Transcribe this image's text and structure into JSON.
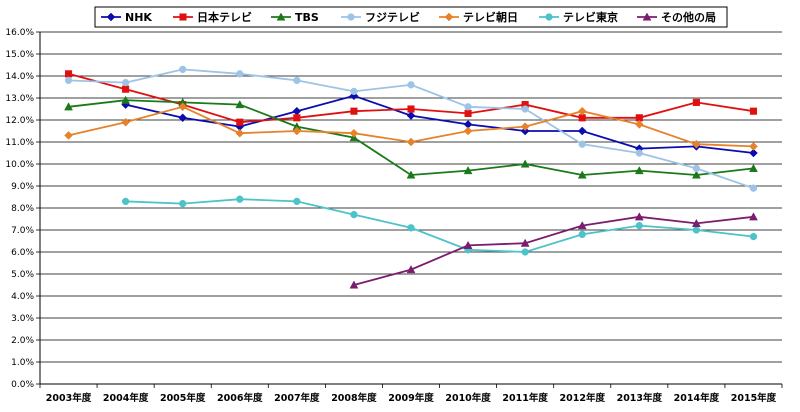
{
  "chart_data": {
    "type": "line",
    "title": "",
    "xlabel": "",
    "ylabel": "",
    "ylim": [
      0,
      16
    ],
    "y_tick_step": 1,
    "y_tick_format": "percent_1dp",
    "grid": true,
    "legend_position": "top",
    "categories": [
      "2003年度",
      "2004年度",
      "2005年度",
      "2006年度",
      "2007年度",
      "2008年度",
      "2009年度",
      "2010年度",
      "2011年度",
      "2012年度",
      "2013年度",
      "2014年度",
      "2015年度"
    ],
    "series": [
      {
        "name": "NHK",
        "color": "#0b0bb0",
        "marker": "diamond",
        "values": [
          null,
          12.7,
          12.1,
          11.7,
          12.4,
          13.1,
          12.2,
          11.8,
          11.5,
          11.5,
          10.7,
          10.8,
          10.5
        ]
      },
      {
        "name": "日本テレビ",
        "color": "#e01010",
        "marker": "square",
        "values": [
          14.1,
          13.4,
          12.7,
          11.9,
          12.1,
          12.4,
          12.5,
          12.3,
          12.7,
          12.1,
          12.1,
          12.8,
          12.4
        ]
      },
      {
        "name": "TBS",
        "color": "#1a7a1a",
        "marker": "triangle",
        "values": [
          12.6,
          12.9,
          12.8,
          12.7,
          11.7,
          11.2,
          9.5,
          9.7,
          10.0,
          9.5,
          9.7,
          9.5,
          9.8
        ]
      },
      {
        "name": "フジテレビ",
        "color": "#9dc3e6",
        "marker": "circle",
        "values": [
          13.8,
          13.7,
          14.3,
          14.1,
          13.8,
          13.3,
          13.6,
          12.6,
          12.5,
          10.9,
          10.5,
          9.8,
          8.9
        ]
      },
      {
        "name": "テレビ朝日",
        "color": "#e6822a",
        "marker": "diamond",
        "values": [
          11.3,
          11.9,
          12.6,
          11.4,
          11.5,
          11.4,
          11.0,
          11.5,
          11.7,
          12.4,
          11.8,
          10.9,
          10.8
        ]
      },
      {
        "name": "テレビ東京",
        "color": "#4bc3c8",
        "marker": "circle",
        "values": [
          null,
          8.3,
          8.2,
          8.4,
          8.3,
          7.7,
          7.1,
          6.1,
          6.0,
          6.8,
          7.2,
          7.0,
          6.7
        ]
      },
      {
        "name": "その他の局",
        "color": "#7b1d6e",
        "marker": "triangle",
        "values": [
          null,
          null,
          null,
          null,
          null,
          4.5,
          5.2,
          6.3,
          6.4,
          7.2,
          7.6,
          7.3,
          7.6
        ]
      }
    ]
  }
}
